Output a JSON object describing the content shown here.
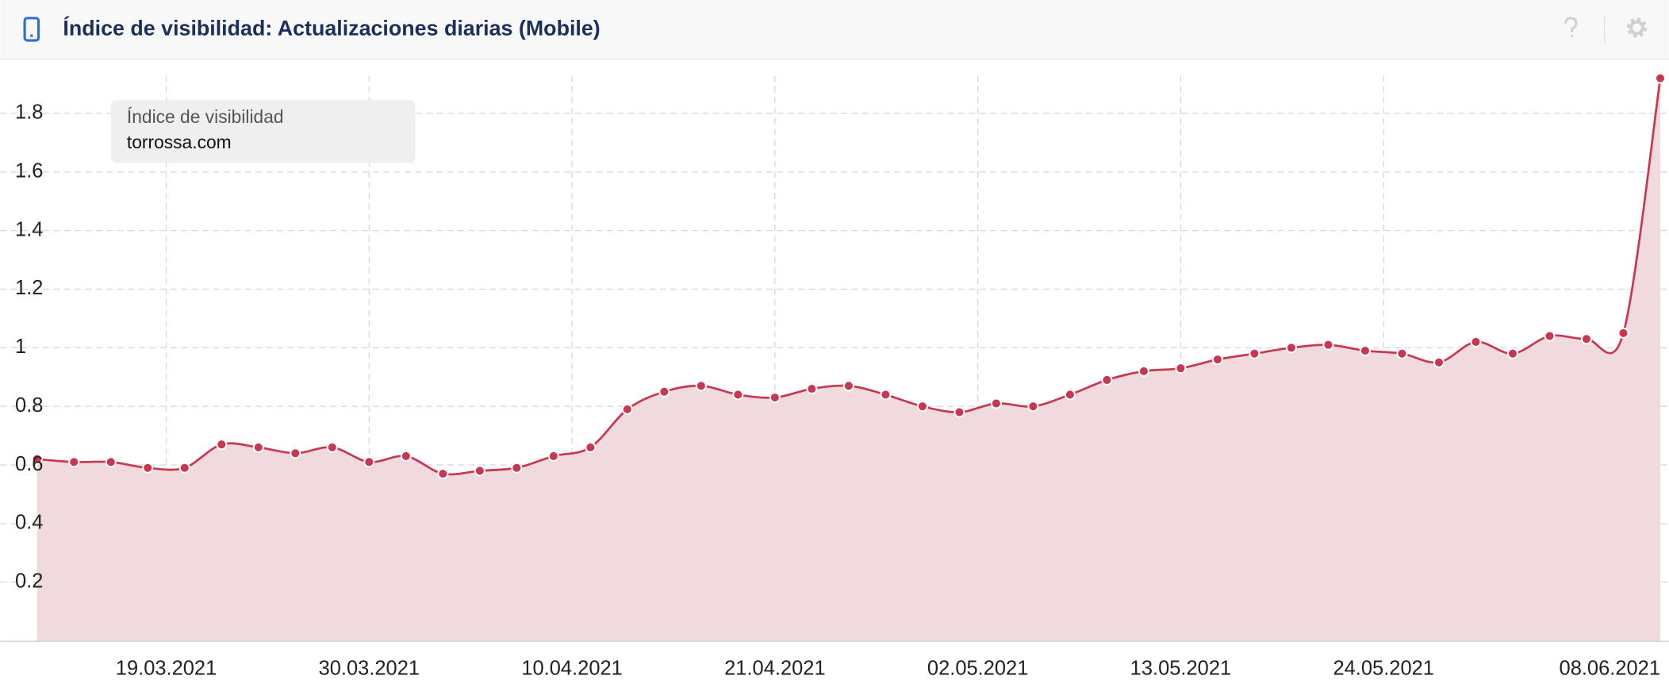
{
  "chart_data": {
    "type": "line",
    "title": "Índice de visibilidad: Actualizaciones diarias (Mobile)",
    "legend_title": "Índice de visibilidad",
    "x": [
      "12.03.2021",
      "14.03.2021",
      "16.03.2021",
      "18.03.2021",
      "20.03.2021",
      "22.03.2021",
      "24.03.2021",
      "26.03.2021",
      "28.03.2021",
      "30.03.2021",
      "01.04.2021",
      "03.04.2021",
      "05.04.2021",
      "07.04.2021",
      "09.04.2021",
      "11.04.2021",
      "13.04.2021",
      "15.04.2021",
      "17.04.2021",
      "19.04.2021",
      "21.04.2021",
      "23.04.2021",
      "25.04.2021",
      "27.04.2021",
      "29.04.2021",
      "01.05.2021",
      "03.05.2021",
      "05.05.2021",
      "07.05.2021",
      "09.05.2021",
      "11.05.2021",
      "13.05.2021",
      "15.05.2021",
      "17.05.2021",
      "19.05.2021",
      "21.05.2021",
      "23.05.2021",
      "25.05.2021",
      "27.05.2021",
      "29.05.2021",
      "31.05.2021",
      "02.06.2021",
      "04.06.2021",
      "06.06.2021",
      "08.06.2021"
    ],
    "series": [
      {
        "name": "torrossa.com",
        "color": "#c8364f",
        "fill": "#f0dade",
        "values": [
          0.62,
          0.61,
          0.61,
          0.59,
          0.59,
          0.67,
          0.66,
          0.64,
          0.66,
          0.61,
          0.63,
          0.57,
          0.58,
          0.59,
          0.63,
          0.66,
          0.79,
          0.85,
          0.87,
          0.84,
          0.83,
          0.86,
          0.87,
          0.84,
          0.8,
          0.78,
          0.81,
          0.8,
          0.84,
          0.89,
          0.92,
          0.93,
          0.96,
          0.98,
          1.0,
          1.01,
          0.99,
          0.98,
          0.95,
          1.02,
          0.98,
          1.04,
          1.03,
          1.05,
          1.92
        ]
      }
    ],
    "xlim": [
      "10.03.2021",
      "08.06.2021"
    ],
    "xticks": [
      "19.03.2021",
      "30.03.2021",
      "10.04.2021",
      "21.04.2021",
      "02.05.2021",
      "13.05.2021",
      "24.05.2021",
      "08.06.2021"
    ],
    "ylim": [
      0,
      1.98
    ],
    "yticks": [
      0.2,
      0.4,
      0.6,
      0.8,
      1,
      1.2,
      1.4,
      1.6,
      1.8
    ],
    "grid": true
  }
}
